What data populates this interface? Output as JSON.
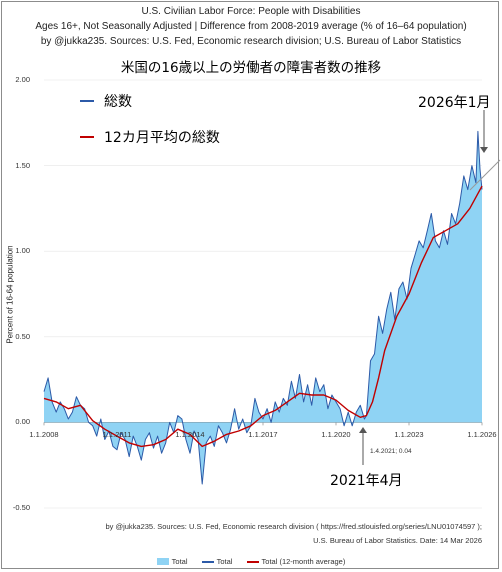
{
  "header": {
    "line1": "U.S. Civilian Labor Force:  People with Disabilities",
    "line2": "Ages 16+, Not Seasonally Adjusted | Difference from 2008-2019 average (% of 16–64 population)",
    "line3": "by @jukka235. Sources: U.S. Fed, Economic research division; U.S. Bureau of Labor Statistics",
    "jp_title": "米国の16歳以上の労働者の障害者数の推移"
  },
  "legend_jp": {
    "total": "総数",
    "avg": "12カ月平均の総数"
  },
  "annotations": {
    "latest": "2026年1月",
    "low": "2021年4月",
    "low_point": "1.4.2021; 0.04"
  },
  "source": {
    "line1": "by @jukka235. Sources: U.S. Fed, Economic research division ( https://fred.stlouisfed.org/series/LNU01074597 );",
    "line2": "U.S. Bureau of Labor Statistics. Date: 14 Mar 2026"
  },
  "legend_bottom": {
    "area": "Total",
    "line": "Total",
    "avg": "Total (12-month average)"
  },
  "colors": {
    "area": "#8fd3f4",
    "line": "#2c5aa8",
    "avg": "#c00000"
  },
  "chart_data": {
    "type": "area",
    "title": "U.S. Civilian Labor Force:  People with Disabilities",
    "ylabel": "Percent of 16-64 population",
    "ylim": [
      -0.5,
      2.0
    ],
    "yticks": [
      "-0.50",
      "0.00",
      "0.50",
      "1.00",
      "1.50",
      "2.00"
    ],
    "xticks": [
      "1.1.2008",
      "1.1.2011",
      "1.1.2014",
      "1.1.2017",
      "1.1.2020",
      "1.1.2023",
      "1.1.2026"
    ],
    "x_start": "2008-01",
    "x_end": "2026-01",
    "series": [
      {
        "name": "Total",
        "kind": "area+line",
        "anchors": [
          [
            "2008-01",
            0.18
          ],
          [
            "2008-03",
            0.26
          ],
          [
            "2008-05",
            0.12
          ],
          [
            "2008-07",
            0.06
          ],
          [
            "2008-09",
            0.12
          ],
          [
            "2008-11",
            0.08
          ],
          [
            "2009-01",
            0.02
          ],
          [
            "2009-03",
            0.06
          ],
          [
            "2009-05",
            0.15
          ],
          [
            "2009-07",
            0.1
          ],
          [
            "2009-09",
            0.08
          ],
          [
            "2009-11",
            0.0
          ],
          [
            "2010-01",
            -0.02
          ],
          [
            "2010-03",
            -0.08
          ],
          [
            "2010-05",
            0.02
          ],
          [
            "2010-07",
            -0.1
          ],
          [
            "2010-09",
            -0.05
          ],
          [
            "2010-11",
            -0.14
          ],
          [
            "2011-01",
            -0.16
          ],
          [
            "2011-03",
            -0.06
          ],
          [
            "2011-05",
            -0.1
          ],
          [
            "2011-07",
            -0.2
          ],
          [
            "2011-09",
            -0.08
          ],
          [
            "2011-11",
            -0.14
          ],
          [
            "2012-01",
            -0.22
          ],
          [
            "2012-03",
            -0.1
          ],
          [
            "2012-05",
            -0.06
          ],
          [
            "2012-07",
            -0.15
          ],
          [
            "2012-09",
            -0.08
          ],
          [
            "2012-11",
            -0.18
          ],
          [
            "2013-01",
            -0.12
          ],
          [
            "2013-03",
            0.0
          ],
          [
            "2013-05",
            -0.06
          ],
          [
            "2013-07",
            0.04
          ],
          [
            "2013-09",
            0.02
          ],
          [
            "2013-11",
            -0.1
          ],
          [
            "2014-01",
            -0.18
          ],
          [
            "2014-03",
            -0.05
          ],
          [
            "2014-05",
            -0.1
          ],
          [
            "2014-07",
            -0.36
          ],
          [
            "2014-09",
            -0.12
          ],
          [
            "2014-11",
            -0.08
          ],
          [
            "2015-01",
            -0.14
          ],
          [
            "2015-03",
            -0.02
          ],
          [
            "2015-05",
            -0.06
          ],
          [
            "2015-07",
            -0.12
          ],
          [
            "2015-09",
            -0.04
          ],
          [
            "2015-11",
            0.08
          ],
          [
            "2016-01",
            -0.04
          ],
          [
            "2016-03",
            0.02
          ],
          [
            "2016-05",
            -0.06
          ],
          [
            "2016-07",
            -0.02
          ],
          [
            "2016-09",
            0.14
          ],
          [
            "2016-11",
            0.06
          ],
          [
            "2017-01",
            0.02
          ],
          [
            "2017-03",
            0.08
          ],
          [
            "2017-05",
            0.0
          ],
          [
            "2017-07",
            0.12
          ],
          [
            "2017-09",
            0.06
          ],
          [
            "2017-11",
            0.14
          ],
          [
            "2018-01",
            0.1
          ],
          [
            "2018-03",
            0.24
          ],
          [
            "2018-05",
            0.14
          ],
          [
            "2018-07",
            0.28
          ],
          [
            "2018-09",
            0.12
          ],
          [
            "2018-11",
            0.22
          ],
          [
            "2019-01",
            0.1
          ],
          [
            "2019-03",
            0.26
          ],
          [
            "2019-05",
            0.18
          ],
          [
            "2019-07",
            0.22
          ],
          [
            "2019-09",
            0.08
          ],
          [
            "2019-11",
            0.16
          ],
          [
            "2020-01",
            0.12
          ],
          [
            "2020-03",
            0.08
          ],
          [
            "2020-05",
            -0.02
          ],
          [
            "2020-07",
            0.06
          ],
          [
            "2020-09",
            -0.02
          ],
          [
            "2020-11",
            0.06
          ],
          [
            "2021-01",
            0.1
          ],
          [
            "2021-03",
            0.02
          ],
          [
            "2021-04",
            0.04
          ],
          [
            "2021-06",
            0.36
          ],
          [
            "2021-08",
            0.4
          ],
          [
            "2021-10",
            0.62
          ],
          [
            "2021-12",
            0.52
          ],
          [
            "2022-02",
            0.66
          ],
          [
            "2022-04",
            0.76
          ],
          [
            "2022-06",
            0.6
          ],
          [
            "2022-08",
            0.78
          ],
          [
            "2022-10",
            0.82
          ],
          [
            "2022-12",
            0.72
          ],
          [
            "2023-02",
            0.9
          ],
          [
            "2023-04",
            0.98
          ],
          [
            "2023-06",
            1.06
          ],
          [
            "2023-08",
            1.02
          ],
          [
            "2023-10",
            1.12
          ],
          [
            "2023-12",
            1.22
          ],
          [
            "2024-02",
            1.06
          ],
          [
            "2024-04",
            1.02
          ],
          [
            "2024-06",
            1.12
          ],
          [
            "2024-08",
            1.04
          ],
          [
            "2024-10",
            1.22
          ],
          [
            "2024-12",
            1.16
          ],
          [
            "2025-02",
            1.28
          ],
          [
            "2025-04",
            1.44
          ],
          [
            "2025-06",
            1.36
          ],
          [
            "2025-08",
            1.5
          ],
          [
            "2025-10",
            1.4
          ],
          [
            "2025-11",
            1.7
          ],
          [
            "2025-12",
            1.48
          ],
          [
            "2026-01",
            1.36
          ]
        ]
      },
      {
        "name": "Total (12-month average)",
        "kind": "line",
        "anchors": [
          [
            "2008-01",
            0.14
          ],
          [
            "2008-07",
            0.12
          ],
          [
            "2009-01",
            0.08
          ],
          [
            "2009-07",
            0.1
          ],
          [
            "2010-01",
            0.01
          ],
          [
            "2010-07",
            -0.04
          ],
          [
            "2011-01",
            -0.08
          ],
          [
            "2011-07",
            -0.12
          ],
          [
            "2012-01",
            -0.14
          ],
          [
            "2012-07",
            -0.13
          ],
          [
            "2013-01",
            -0.1
          ],
          [
            "2013-07",
            -0.04
          ],
          [
            "2014-01",
            -0.07
          ],
          [
            "2014-07",
            -0.14
          ],
          [
            "2015-01",
            -0.11
          ],
          [
            "2015-07",
            -0.07
          ],
          [
            "2016-01",
            -0.05
          ],
          [
            "2016-07",
            -0.02
          ],
          [
            "2017-01",
            0.04
          ],
          [
            "2017-07",
            0.07
          ],
          [
            "2018-01",
            0.12
          ],
          [
            "2018-07",
            0.17
          ],
          [
            "2019-01",
            0.16
          ],
          [
            "2019-07",
            0.16
          ],
          [
            "2020-01",
            0.13
          ],
          [
            "2020-07",
            0.07
          ],
          [
            "2021-01",
            0.03
          ],
          [
            "2021-04",
            0.04
          ],
          [
            "2021-07",
            0.12
          ],
          [
            "2021-10",
            0.26
          ],
          [
            "2022-01",
            0.42
          ],
          [
            "2022-07",
            0.62
          ],
          [
            "2023-01",
            0.75
          ],
          [
            "2023-07",
            0.93
          ],
          [
            "2024-01",
            1.08
          ],
          [
            "2024-07",
            1.12
          ],
          [
            "2025-01",
            1.16
          ],
          [
            "2025-07",
            1.25
          ],
          [
            "2026-01",
            1.38
          ]
        ]
      }
    ]
  }
}
